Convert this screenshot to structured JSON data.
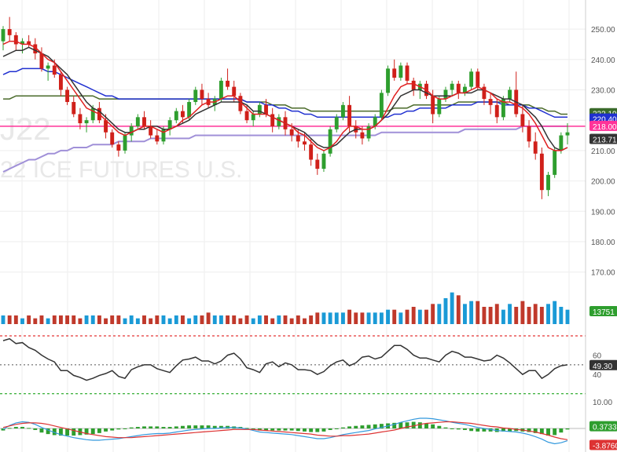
{
  "watermark": {
    "symbol": "J22",
    "exchange": "22 ICE FUTURES U.S."
  },
  "colors": {
    "up": "#2e9e2e",
    "down": "#d0201a",
    "volume_up": "#1a9ad6",
    "volume_down": "#c0392b",
    "ma_fast": "#e02020",
    "ma_mid": "#333333",
    "ma_blue": "#2030d0",
    "ma_olive": "#4a6a2a",
    "ma_long": "#a090d8",
    "hline": "#ff3399",
    "stoch": "#333333",
    "macd": "#3399dd",
    "signal": "#dd3333",
    "hist": "#2e9e2e"
  },
  "chart_data": {
    "type": "candlestick",
    "y_ticks": [
      "250.00",
      "240.00",
      "230.00",
      "220.00",
      "210.00",
      "200.00",
      "190.00",
      "180.00",
      "170.00"
    ],
    "ylim": [
      160,
      257
    ],
    "candles": [
      [
        246,
        251,
        243,
        250
      ],
      [
        250,
        254,
        246,
        248
      ],
      [
        248,
        249,
        243,
        245
      ],
      [
        245,
        247,
        242,
        246
      ],
      [
        246,
        248,
        244,
        245
      ],
      [
        245,
        247,
        240,
        242
      ],
      [
        242,
        244,
        236,
        237
      ],
      [
        237,
        239,
        233,
        238
      ],
      [
        238,
        240,
        234,
        235
      ],
      [
        235,
        236,
        228,
        230
      ],
      [
        230,
        231,
        225,
        226
      ],
      [
        226,
        228,
        221,
        222
      ],
      [
        222,
        224,
        217,
        219
      ],
      [
        219,
        221,
        216,
        220
      ],
      [
        220,
        225,
        219,
        224
      ],
      [
        224,
        226,
        219,
        220
      ],
      [
        220,
        222,
        214,
        216
      ],
      [
        216,
        217,
        211,
        212
      ],
      [
        212,
        213,
        208,
        210
      ],
      [
        210,
        216,
        209,
        215
      ],
      [
        215,
        219,
        213,
        218
      ],
      [
        218,
        222,
        217,
        221
      ],
      [
        221,
        223,
        217,
        218
      ],
      [
        218,
        220,
        214,
        215
      ],
      [
        215,
        217,
        212,
        213
      ],
      [
        213,
        218,
        212,
        217
      ],
      [
        217,
        221,
        215,
        220
      ],
      [
        220,
        224,
        219,
        223
      ],
      [
        223,
        225,
        219,
        221
      ],
      [
        221,
        227,
        220,
        226
      ],
      [
        226,
        231,
        225,
        230
      ],
      [
        230,
        232,
        225,
        227
      ],
      [
        227,
        229,
        224,
        225
      ],
      [
        225,
        228,
        223,
        227
      ],
      [
        227,
        234,
        226,
        233
      ],
      [
        233,
        237,
        230,
        231
      ],
      [
        231,
        233,
        226,
        228
      ],
      [
        228,
        229,
        222,
        223
      ],
      [
        223,
        225,
        219,
        220
      ],
      [
        220,
        223,
        218,
        222
      ],
      [
        222,
        226,
        221,
        225
      ],
      [
        225,
        227,
        221,
        222
      ],
      [
        222,
        224,
        216,
        218
      ],
      [
        218,
        222,
        217,
        221
      ],
      [
        221,
        223,
        215,
        217
      ],
      [
        217,
        219,
        213,
        215
      ],
      [
        215,
        217,
        211,
        213
      ],
      [
        213,
        216,
        210,
        212
      ],
      [
        212,
        214,
        205,
        207
      ],
      [
        207,
        209,
        202,
        204
      ],
      [
        204,
        210,
        203,
        209
      ],
      [
        209,
        218,
        208,
        217
      ],
      [
        217,
        222,
        216,
        221
      ],
      [
        221,
        226,
        220,
        225
      ],
      [
        225,
        228,
        216,
        218
      ],
      [
        218,
        220,
        214,
        216
      ],
      [
        216,
        218,
        212,
        214
      ],
      [
        214,
        219,
        213,
        218
      ],
      [
        218,
        222,
        217,
        221
      ],
      [
        221,
        230,
        220,
        229
      ],
      [
        229,
        238,
        228,
        237
      ],
      [
        237,
        240,
        233,
        234
      ],
      [
        234,
        239,
        233,
        238
      ],
      [
        238,
        239,
        232,
        233
      ],
      [
        233,
        234,
        228,
        230
      ],
      [
        230,
        233,
        227,
        232
      ],
      [
        232,
        233,
        227,
        228
      ],
      [
        228,
        230,
        219,
        222
      ],
      [
        222,
        228,
        221,
        227
      ],
      [
        227,
        231,
        226,
        230
      ],
      [
        230,
        233,
        228,
        232
      ],
      [
        232,
        233,
        227,
        229
      ],
      [
        229,
        232,
        228,
        231
      ],
      [
        231,
        237,
        230,
        236
      ],
      [
        236,
        237,
        230,
        231
      ],
      [
        231,
        232,
        225,
        227
      ],
      [
        227,
        229,
        222,
        225
      ],
      [
        225,
        227,
        219,
        221
      ],
      [
        221,
        228,
        220,
        227
      ],
      [
        227,
        231,
        226,
        230
      ],
      [
        230,
        236,
        221,
        222
      ],
      [
        222,
        225,
        216,
        218
      ],
      [
        218,
        220,
        211,
        213
      ],
      [
        213,
        216,
        207,
        209
      ],
      [
        209,
        211,
        194,
        197
      ],
      [
        197,
        203,
        195,
        202
      ],
      [
        202,
        211,
        201,
        210
      ],
      [
        210,
        216,
        209,
        215
      ],
      [
        215,
        219,
        212,
        216
      ]
    ],
    "ma_fast_values": [
      245,
      246,
      246,
      245,
      245,
      244,
      242,
      240,
      239,
      236,
      233,
      230,
      227,
      224,
      223,
      222,
      220,
      218,
      216,
      215,
      216,
      217,
      218,
      218,
      217,
      216,
      217,
      218,
      220,
      221,
      223,
      225,
      226,
      226,
      227,
      228,
      228,
      226,
      224,
      222,
      222,
      222,
      221,
      220,
      219,
      218,
      216,
      215,
      213,
      211,
      210,
      211,
      213,
      216,
      218,
      218,
      217,
      217,
      218,
      220,
      224,
      228,
      231,
      232,
      232,
      231,
      230,
      228,
      227,
      227,
      228,
      229,
      229,
      230,
      231,
      230,
      229,
      227,
      226,
      226,
      225,
      224,
      222,
      219,
      215,
      211,
      210,
      210,
      211
    ],
    "ma_mid_values": [
      241,
      242,
      243,
      243,
      244,
      243,
      242,
      241,
      239,
      237,
      235,
      232,
      229,
      226,
      224,
      223,
      221,
      219,
      217,
      216,
      216,
      217,
      217,
      218,
      218,
      217,
      217,
      218,
      219,
      220,
      222,
      223,
      224,
      225,
      226,
      226,
      226,
      226,
      225,
      223,
      223,
      222,
      221,
      220,
      219,
      218,
      217,
      216,
      214,
      212,
      211,
      211,
      212,
      214,
      216,
      217,
      217,
      217,
      218,
      220,
      222,
      225,
      228,
      229,
      230,
      230,
      229,
      228,
      228,
      228,
      228,
      229,
      229,
      229,
      230,
      230,
      229,
      228,
      227,
      227,
      226,
      225,
      223,
      221,
      218,
      214,
      211,
      210,
      211
    ],
    "ma_blue_values": [
      235,
      236,
      236,
      237,
      237,
      237,
      237,
      236,
      236,
      235,
      234,
      233,
      232,
      231,
      230,
      229,
      228,
      228,
      227,
      227,
      227,
      227,
      227,
      227,
      227,
      227,
      227,
      227,
      227,
      227,
      227,
      227,
      227,
      227,
      227,
      227,
      227,
      227,
      226,
      226,
      226,
      225,
      225,
      224,
      224,
      223,
      223,
      222,
      222,
      221,
      221,
      221,
      221,
      221,
      221,
      221,
      221,
      221,
      221,
      221,
      221,
      222,
      222,
      223,
      223,
      224,
      224,
      224,
      224,
      224,
      225,
      225,
      225,
      225,
      226,
      226,
      226,
      226,
      225,
      225,
      225,
      225,
      224,
      224,
      223,
      222,
      221,
      221,
      221
    ],
    "ma_olive_values": [
      227,
      227,
      228,
      228,
      228,
      228,
      228,
      228,
      228,
      228,
      228,
      228,
      228,
      228,
      228,
      227,
      227,
      227,
      227,
      227,
      227,
      227,
      227,
      227,
      227,
      227,
      227,
      227,
      227,
      227,
      227,
      227,
      227,
      227,
      227,
      227,
      227,
      227,
      226,
      226,
      226,
      226,
      225,
      225,
      225,
      224,
      224,
      224,
      223,
      223,
      223,
      223,
      223,
      223,
      223,
      223,
      223,
      223,
      223,
      223,
      223,
      224,
      224,
      224,
      225,
      225,
      225,
      225,
      225,
      225,
      225,
      226,
      226,
      226,
      226,
      226,
      226,
      226,
      226,
      225,
      225,
      225,
      225,
      224,
      224,
      223,
      223,
      222,
      222
    ],
    "ma_long_values": [
      203,
      204,
      205,
      206,
      207,
      207,
      208,
      209,
      209,
      210,
      210,
      211,
      211,
      211,
      212,
      212,
      212,
      212,
      213,
      213,
      213,
      213,
      213,
      214,
      214,
      214,
      214,
      214,
      214,
      214,
      215,
      215,
      215,
      215,
      215,
      215,
      215,
      215,
      215,
      215,
      215,
      215,
      215,
      215,
      215,
      215,
      215,
      215,
      215,
      215,
      215,
      215,
      215,
      215,
      215,
      215,
      215,
      215,
      215,
      216,
      216,
      216,
      216,
      216,
      216,
      216,
      216,
      216,
      216,
      216,
      216,
      216,
      217,
      217,
      217,
      217,
      217,
      217,
      217,
      217,
      217,
      218,
      218,
      218,
      218,
      218,
      218,
      218,
      218
    ],
    "horizontal_line": 218,
    "price_badges": [
      {
        "label": "222.19",
        "value": 222.19,
        "color": "#3a6a2a"
      },
      {
        "label": "220.40",
        "value": 220.4,
        "color": "#2030d0"
      },
      {
        "label": "218.00",
        "value": 218,
        "color": "#ff3399"
      },
      {
        "label": "213.71",
        "value": 213.71,
        "color": "#333333"
      }
    ],
    "volume": {
      "values": [
        3,
        3,
        3,
        2,
        3,
        2,
        3,
        2,
        3,
        3,
        3,
        3,
        2,
        3,
        3,
        3,
        2,
        3,
        3,
        2,
        3,
        2,
        3,
        2,
        3,
        3,
        2,
        3,
        3,
        2,
        3,
        3,
        4,
        3,
        3,
        3,
        3,
        2,
        3,
        2,
        3,
        3,
        2,
        3,
        3,
        2,
        3,
        2,
        3,
        4,
        4,
        4,
        4,
        4,
        5,
        4,
        4,
        4,
        4,
        4,
        5,
        5,
        4,
        5,
        6,
        5,
        5,
        7,
        7,
        9,
        11,
        10,
        7,
        8,
        8,
        6,
        6,
        7,
        5,
        7,
        6,
        8,
        6,
        7,
        6,
        7,
        8,
        6,
        5
      ],
      "ylim": [
        0,
        12
      ],
      "badge": "13751"
    },
    "stochastic": {
      "values": [
        75,
        77,
        72,
        73,
        68,
        65,
        60,
        56,
        53,
        44,
        44,
        39,
        37,
        34,
        36,
        39,
        41,
        44,
        38,
        36,
        45,
        48,
        50,
        50,
        46,
        44,
        42,
        49,
        55,
        56,
        58,
        54,
        54,
        51,
        54,
        60,
        62,
        56,
        47,
        45,
        42,
        51,
        53,
        48,
        52,
        50,
        45,
        45,
        44,
        40,
        43,
        49,
        53,
        55,
        49,
        52,
        58,
        59,
        56,
        58,
        64,
        70,
        70,
        66,
        60,
        57,
        57,
        55,
        53,
        60,
        64,
        62,
        58,
        58,
        56,
        54,
        55,
        60,
        57,
        52,
        46,
        40,
        44,
        44,
        36,
        40,
        46,
        49,
        50
      ],
      "ylim": [
        14,
        82
      ],
      "ticks": [
        "60",
        "40"
      ],
      "upper": 80,
      "lower": 20,
      "badge": "49.30",
      "bottom_tick": "10.00"
    },
    "macd": {
      "macd_values": [
        -0.2,
        0.6,
        1.1,
        1.3,
        1.2,
        0.8,
        0.2,
        -0.3,
        -0.8,
        -1.2,
        -1.5,
        -1.8,
        -2,
        -2.2,
        -2.3,
        -2.3,
        -2.2,
        -2.1,
        -2,
        -1.8,
        -1.6,
        -1.4,
        -1.2,
        -1.1,
        -1,
        -1,
        -0.9,
        -0.7,
        -0.5,
        -0.3,
        -0.2,
        -0.1,
        0,
        0,
        0.1,
        0.2,
        0.2,
        0.1,
        -0.1,
        -0.4,
        -0.7,
        -0.8,
        -0.9,
        -1,
        -1.1,
        -1.2,
        -1.4,
        -1.6,
        -1.8,
        -2,
        -2,
        -1.8,
        -1.5,
        -1.2,
        -1,
        -0.8,
        -0.6,
        -0.4,
        -0.1,
        0.2,
        0.5,
        0.8,
        1.2,
        1.5,
        1.8,
        2,
        2,
        1.9,
        1.7,
        1.5,
        1.2,
        1,
        0.8,
        0.5,
        0.2,
        0,
        -0.2,
        -0.4,
        -0.5,
        -0.6,
        -0.7,
        -0.9,
        -1.2,
        -1.6,
        -2.1,
        -2.7,
        -3,
        -2.8,
        -2.4
      ],
      "signal_values": [
        0.2,
        0.5,
        0.8,
        1,
        1.1,
        1.1,
        1,
        0.8,
        0.5,
        0.2,
        -0.1,
        -0.4,
        -0.7,
        -1,
        -1.2,
        -1.4,
        -1.6,
        -1.7,
        -1.8,
        -1.8,
        -1.8,
        -1.7,
        -1.6,
        -1.5,
        -1.4,
        -1.3,
        -1.2,
        -1.1,
        -1,
        -0.9,
        -0.8,
        -0.7,
        -0.6,
        -0.5,
        -0.4,
        -0.3,
        -0.2,
        -0.2,
        -0.2,
        -0.2,
        -0.3,
        -0.4,
        -0.5,
        -0.6,
        -0.7,
        -0.8,
        -0.9,
        -1,
        -1.1,
        -1.3,
        -1.4,
        -1.5,
        -1.5,
        -1.4,
        -1.4,
        -1.3,
        -1.2,
        -1.1,
        -0.9,
        -0.7,
        -0.5,
        -0.3,
        0,
        0.3,
        0.5,
        0.8,
        1,
        1.1,
        1.2,
        1.3,
        1.3,
        1.2,
        1.1,
        1,
        0.8,
        0.6,
        0.4,
        0.3,
        0.1,
        0,
        -0.2,
        -0.3,
        -0.5,
        -0.7,
        -1,
        -1.3,
        -1.7,
        -2,
        -2.2
      ],
      "ylim": [
        -3.3,
        2.5
      ],
      "badges": [
        {
          "label": "0.3733",
          "color": "#2e9e2e",
          "value": 0.3733
        },
        {
          "label": "-3.8760",
          "color": "#dd3333",
          "value": -3.3
        }
      ]
    }
  }
}
